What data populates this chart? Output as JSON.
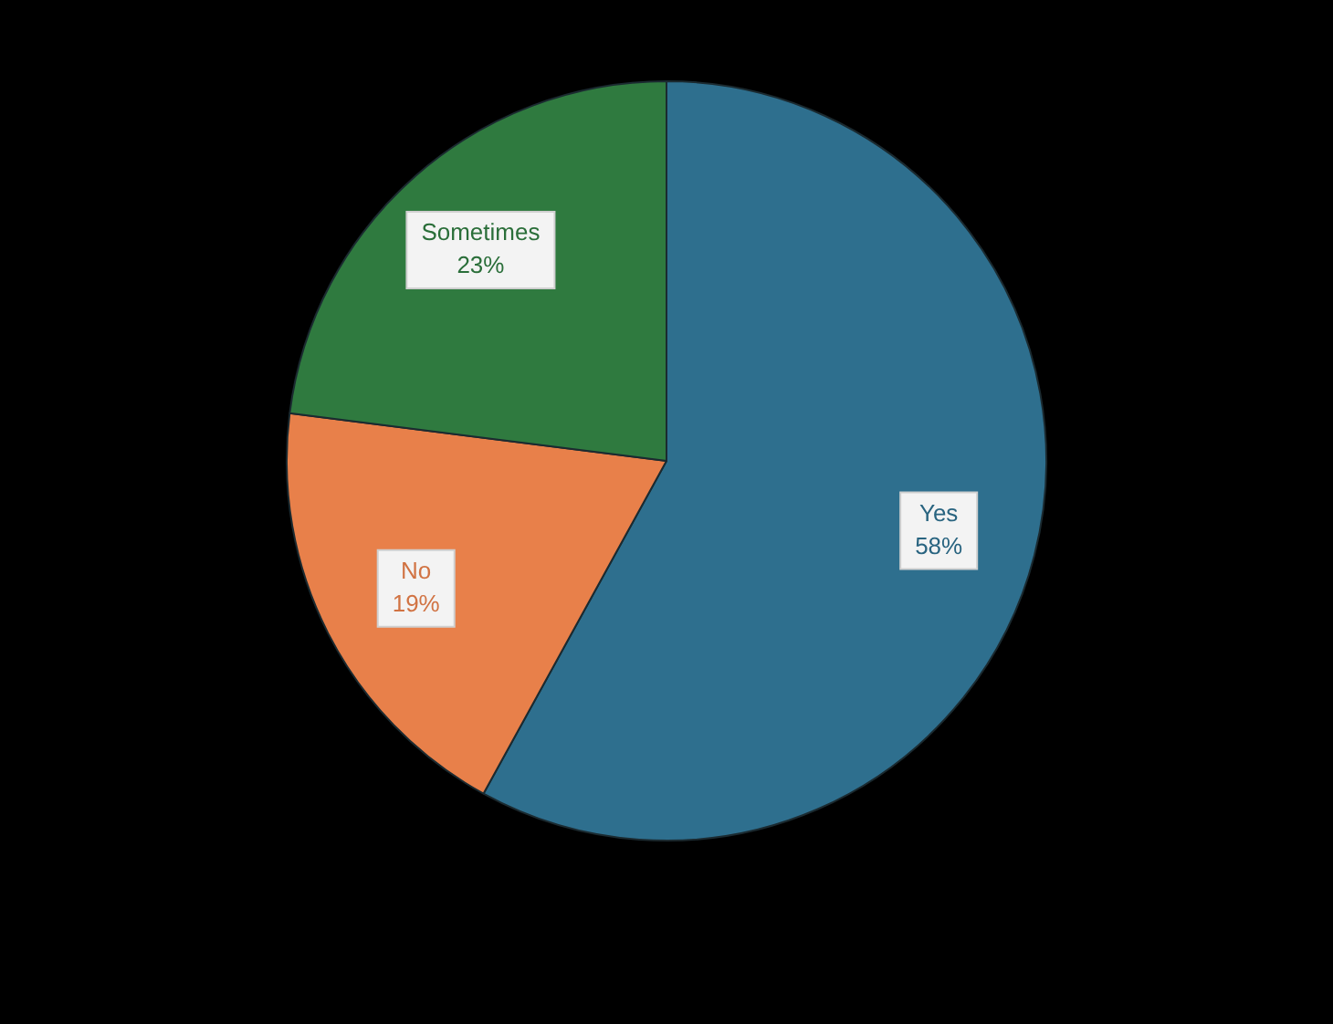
{
  "chart_data": {
    "type": "pie",
    "categories": [
      "Yes",
      "No",
      "Sometimes"
    ],
    "values": [
      58,
      19,
      23
    ],
    "colors": [
      "#2e6f8e",
      "#e8804a",
      "#2f7a3f"
    ],
    "value_labels": [
      "58%",
      "19%",
      "23%"
    ]
  }
}
